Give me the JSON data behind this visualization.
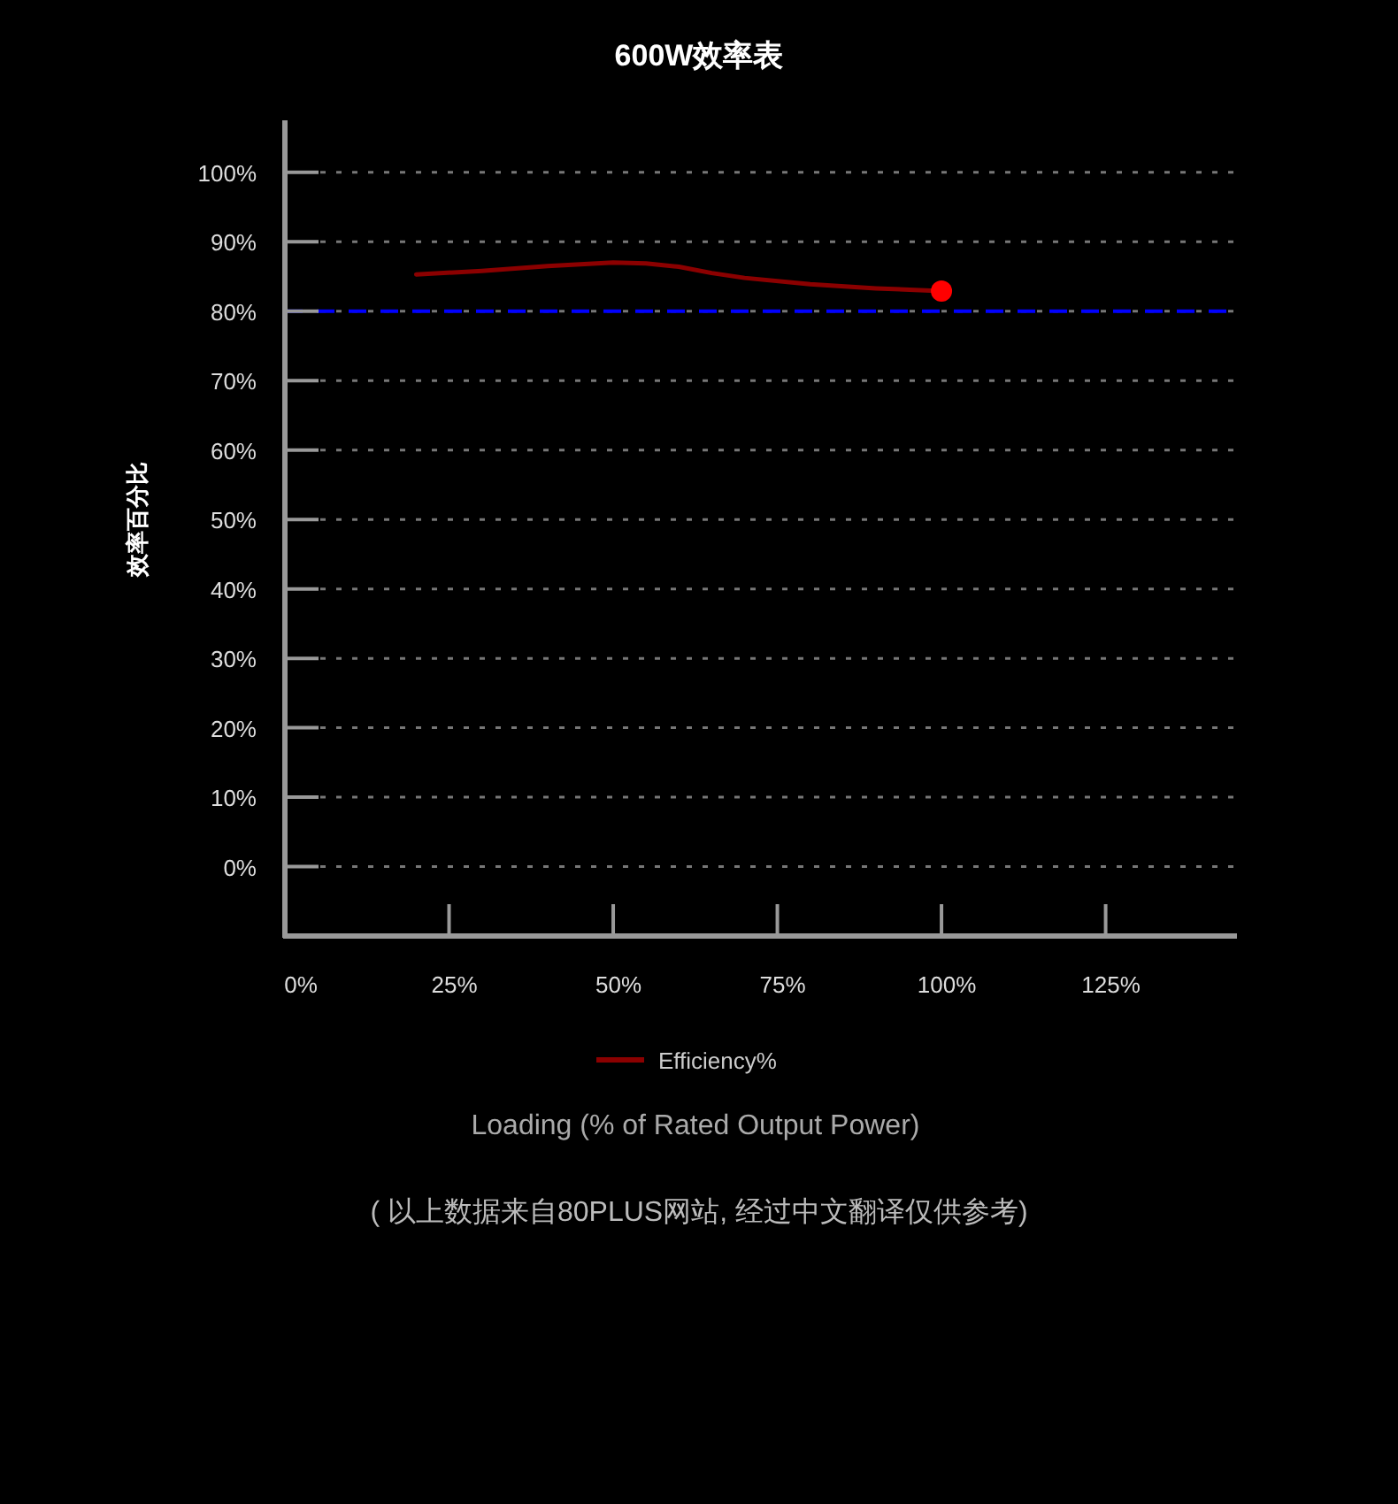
{
  "chart_data": {
    "type": "line",
    "title": "600W效率表",
    "xlabel": "Loading (% of Rated Output Power)",
    "ylabel": "效率百分比",
    "annotations": [
      "( 以上数据来自80PLUS网站, 经过中文翻译仅供参考)"
    ],
    "xlim": [
      0,
      145
    ],
    "xticks": [
      {
        "value": 0,
        "label": "0%"
      },
      {
        "value": 25,
        "label": "25%"
      },
      {
        "value": 50,
        "label": "50%"
      },
      {
        "value": 75,
        "label": "75%"
      },
      {
        "value": 100,
        "label": "100%"
      },
      {
        "value": 125,
        "label": "125%"
      }
    ],
    "ylim": [
      -10,
      107.5
    ],
    "yticks": [
      {
        "value": 0,
        "label": "0%"
      },
      {
        "value": 10,
        "label": "10%"
      },
      {
        "value": 20,
        "label": "20%"
      },
      {
        "value": 30,
        "label": "30%"
      },
      {
        "value": 40,
        "label": "40%"
      },
      {
        "value": 50,
        "label": "50%"
      },
      {
        "value": 60,
        "label": "60%"
      },
      {
        "value": 70,
        "label": "70%"
      },
      {
        "value": 80,
        "label": "80%"
      },
      {
        "value": 90,
        "label": "90%"
      },
      {
        "value": 100,
        "label": "100%"
      }
    ],
    "grid": "y",
    "legend": "bottom",
    "series": [
      {
        "name": "Efficiency%",
        "type": "line",
        "color": "#8b0000",
        "x": [
          20,
          30,
          40,
          50,
          55,
          60,
          65,
          70,
          80,
          90,
          100
        ],
        "values": [
          85.3,
          85.8,
          86.5,
          87,
          86.9,
          86.4,
          85.5,
          84.8,
          83.9,
          83.3,
          82.9
        ]
      },
      {
        "type": "scatter",
        "color": "#ff0000",
        "marker": "circle",
        "x": [
          100
        ],
        "values": [
          82.9
        ]
      }
    ],
    "ref_lines": [
      {
        "axis": "y",
        "value": 80,
        "color": "#0000ff",
        "line_style": "dashed"
      }
    ]
  }
}
